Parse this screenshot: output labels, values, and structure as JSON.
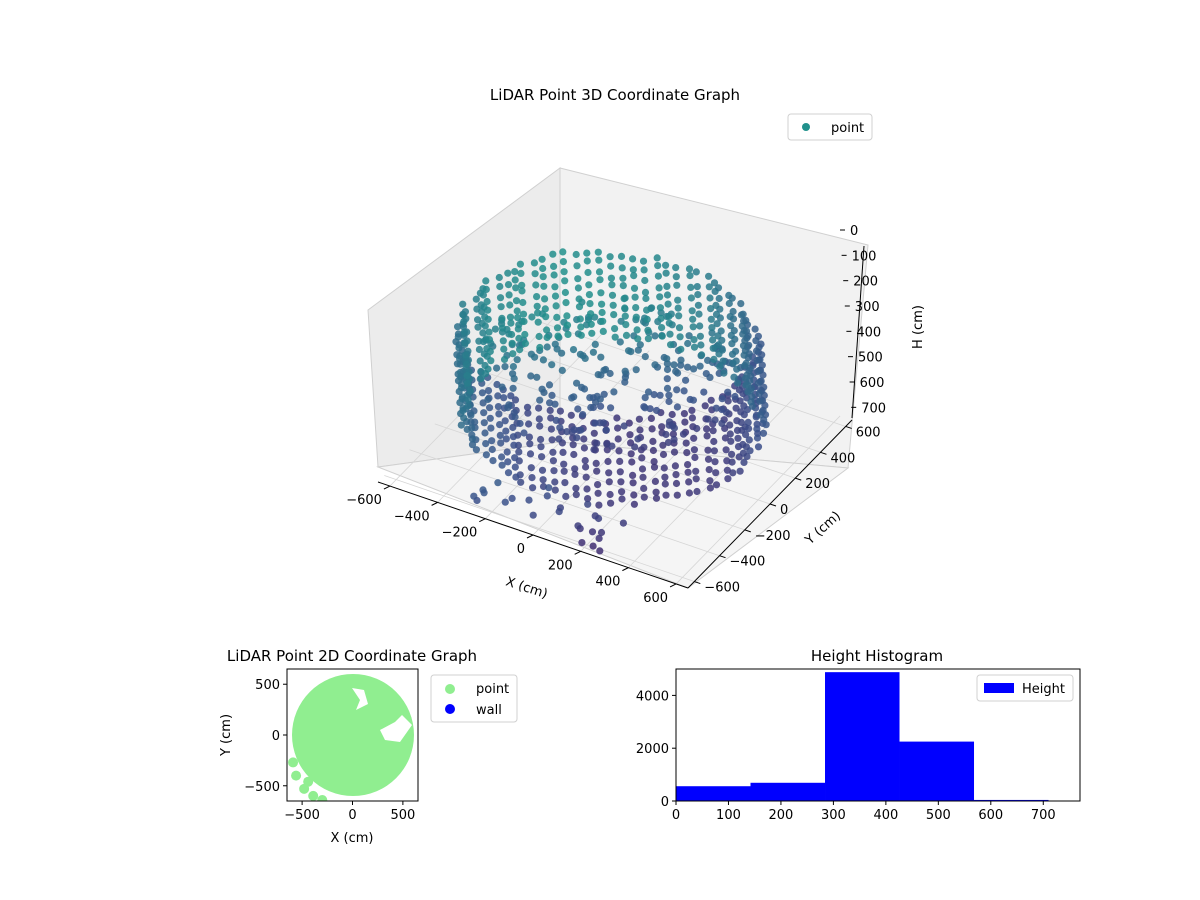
{
  "chart_data": [
    {
      "type": "scatter",
      "title": "LiDAR Point 3D Coordinate Graph",
      "xlabel": "X (cm)",
      "ylabel": "Y (cm)",
      "zlabel": "H (cm)",
      "x_ticks": [
        "−600",
        "−400",
        "−200",
        "0",
        "200",
        "400",
        "600"
      ],
      "y_ticks": [
        "−600",
        "−400",
        "−200",
        "0",
        "200",
        "400",
        "600"
      ],
      "z_ticks": [
        "0",
        "100",
        "200",
        "300",
        "400",
        "500",
        "600",
        "700"
      ],
      "xlim": [
        -650,
        650
      ],
      "ylim": [
        -650,
        650
      ],
      "zlim": [
        0,
        750
      ],
      "z_inverted": true,
      "legend": {
        "placement": "top-right",
        "entries": [
          {
            "name": "point",
            "color": "#21918c"
          }
        ]
      },
      "colormap": "viridis",
      "description_of_points": "ring of lidar points, radius ~550 cm, heights ~300-650 cm, inner floor ~450 cm",
      "series": [
        {
          "name": "point",
          "ring_radius": 550,
          "ring_h_range": [
            300,
            650
          ],
          "floor_h": 450
        }
      ]
    },
    {
      "type": "scatter",
      "title": "LiDAR Point 2D Coordinate Graph",
      "xlabel": "X (cm)",
      "ylabel": "Y (cm)",
      "x_ticks": [
        "−500",
        "0",
        "500"
      ],
      "y_ticks": [
        "500",
        "0",
        "−500"
      ],
      "xlim": [
        -650,
        650
      ],
      "ylim": [
        -650,
        650
      ],
      "legend": {
        "placement": "outside-right",
        "entries": [
          {
            "name": "point",
            "color": "#90ee90"
          },
          {
            "name": "wall",
            "color": "#0000ff"
          }
        ]
      },
      "series": [
        {
          "name": "point",
          "color": "#90ee90",
          "shape": "disk",
          "radius": 600
        },
        {
          "name": "wall",
          "color": "#0000ff",
          "values": []
        }
      ]
    },
    {
      "type": "bar",
      "title": "Height Histogram",
      "x_ticks": [
        "0",
        "100",
        "200",
        "300",
        "400",
        "500",
        "600",
        "700"
      ],
      "y_ticks": [
        "0",
        "2000",
        "4000"
      ],
      "xlim": [
        0,
        770
      ],
      "ylim": [
        0,
        5000
      ],
      "legend": {
        "placement": "top-right",
        "entries": [
          {
            "name": "Height",
            "color": "#0000ff"
          }
        ]
      },
      "bins": [
        {
          "x0": 0,
          "x1": 142,
          "count": 560
        },
        {
          "x0": 142,
          "x1": 284,
          "count": 690
        },
        {
          "x0": 284,
          "x1": 426,
          "count": 4880
        },
        {
          "x0": 426,
          "x1": 568,
          "count": 2250
        },
        {
          "x0": 568,
          "x1": 710,
          "count": 40
        }
      ],
      "bar_color": "#0000ff"
    }
  ]
}
